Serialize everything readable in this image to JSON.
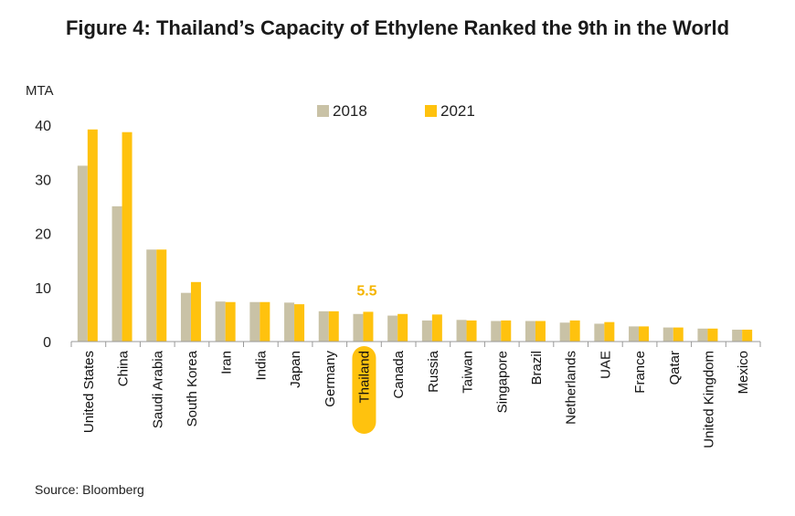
{
  "title": "Figure 4: Thailand’s Capacity of Ethylene Ranked the 9th in the World",
  "source": "Source: Bloomberg",
  "colors": {
    "2018": "#C9C2A6",
    "2021": "#FFC20E",
    "highlight": "#FFC20E",
    "annotation": "#F4B400"
  },
  "chart_data": {
    "type": "bar",
    "unit_label": "MTA",
    "ylim": [
      0,
      40
    ],
    "yticks": [
      0,
      10,
      20,
      30,
      40
    ],
    "grid": false,
    "legend_position": "top-center",
    "categories": [
      "United States",
      "China",
      "Saudi Arabia",
      "South Korea",
      "Iran",
      "India",
      "Japan",
      "Germany",
      "Thailand",
      "Canada",
      "Russia",
      "Taiwan",
      "Singapore",
      "Brazil",
      "Netherlands",
      "UAE",
      "France",
      "Qatar",
      "United Kingdom",
      "Mexico"
    ],
    "series": [
      {
        "name": "2018",
        "values": [
          32.5,
          25.0,
          17.0,
          9.0,
          7.4,
          7.3,
          7.2,
          5.6,
          5.1,
          4.8,
          3.9,
          4.0,
          3.8,
          3.8,
          3.5,
          3.3,
          2.8,
          2.6,
          2.4,
          2.2
        ]
      },
      {
        "name": "2021",
        "values": [
          39.2,
          38.7,
          17.0,
          11.0,
          7.3,
          7.3,
          6.9,
          5.6,
          5.5,
          5.1,
          5.0,
          3.9,
          3.9,
          3.8,
          3.9,
          3.6,
          2.8,
          2.6,
          2.4,
          2.2
        ]
      }
    ],
    "highlight_category": "Thailand",
    "annotation": {
      "category": "Thailand",
      "text": "5.5"
    }
  }
}
